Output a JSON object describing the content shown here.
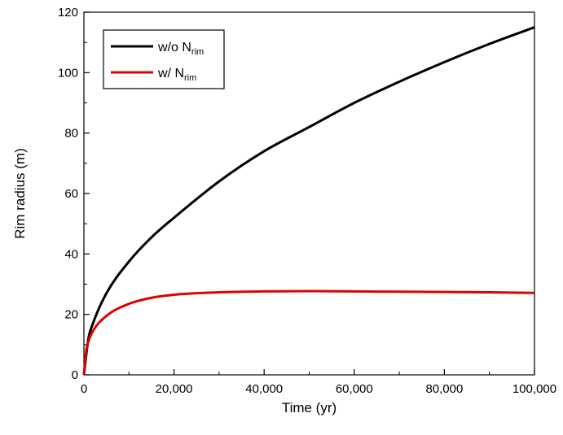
{
  "chart_data": {
    "type": "line",
    "xlabel": "Time (yr)",
    "ylabel": "Rim radius (m)",
    "xlim": [
      0,
      100000
    ],
    "ylim": [
      0,
      120
    ],
    "x_ticks": [
      0,
      20000,
      40000,
      60000,
      80000,
      100000
    ],
    "x_tick_labels": [
      "0",
      "20,000",
      "40,000",
      "60,000",
      "80,000",
      "100,000"
    ],
    "y_ticks": [
      0,
      20,
      40,
      60,
      80,
      100,
      120
    ],
    "y_tick_labels": [
      "0",
      "20",
      "40",
      "60",
      "80",
      "100",
      "120"
    ],
    "grid": false,
    "legend_position": "top-left",
    "series": [
      {
        "name": "w/o N",
        "name_subscript": "rim",
        "color": "#000000",
        "x": [
          0,
          1000,
          2000,
          5000,
          10000,
          15000,
          20000,
          30000,
          40000,
          50000,
          60000,
          70000,
          80000,
          90000,
          100000
        ],
        "y": [
          0,
          12,
          17,
          27,
          37.5,
          45.5,
          52,
          64,
          74,
          82,
          90,
          97,
          103.5,
          109.5,
          115
        ]
      },
      {
        "name": "w/ N",
        "name_subscript": "rim",
        "color": "#e00000",
        "x": [
          0,
          500,
          1000,
          2000,
          5000,
          10000,
          15000,
          20000,
          30000,
          40000,
          50000,
          60000,
          70000,
          80000,
          90000,
          100000
        ],
        "y": [
          0,
          8,
          11,
          14.5,
          19.5,
          23.5,
          25.5,
          26.5,
          27.3,
          27.6,
          27.7,
          27.6,
          27.5,
          27.4,
          27.3,
          27.1
        ]
      }
    ]
  }
}
